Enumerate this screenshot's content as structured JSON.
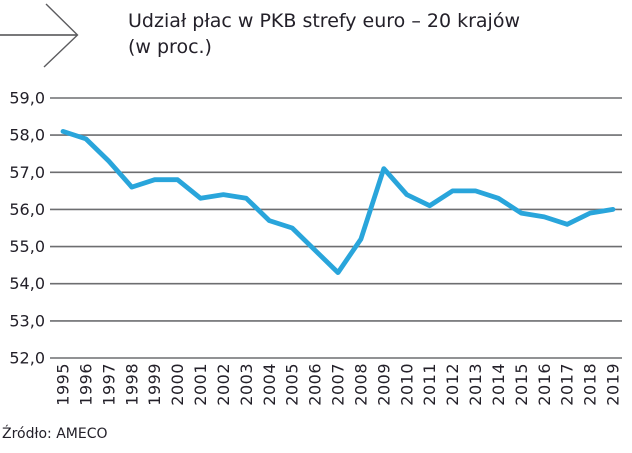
{
  "header": {
    "title_line1": "Udział płac w PKB strefy euro – 20 krajów",
    "title_line2": "(w proc.)"
  },
  "source_label": "Źródło: AMECO",
  "icons": {
    "header_arrow": "right-arrow-icon"
  },
  "colors": {
    "line": "#29A5DB",
    "grid": "#6D6E70",
    "text": "#232029",
    "background": "#FFFFFF"
  },
  "chart_data": {
    "type": "line",
    "title": "Udział płac w PKB strefy euro – 20 krajów (w proc.)",
    "source": "Źródło: AMECO",
    "categories": [
      "1995",
      "1996",
      "1997",
      "1998",
      "1999",
      "2000",
      "2001",
      "2002",
      "2003",
      "2004",
      "2005",
      "2006",
      "2007",
      "2008",
      "2009",
      "2010",
      "2011",
      "2012",
      "2013",
      "2014",
      "2015",
      "2016",
      "2017",
      "2018",
      "2019"
    ],
    "values": [
      58.1,
      57.9,
      57.3,
      56.6,
      56.8,
      56.8,
      56.3,
      56.4,
      56.3,
      55.7,
      55.5,
      54.9,
      54.3,
      55.2,
      57.1,
      56.4,
      56.1,
      56.5,
      56.5,
      56.3,
      55.9,
      55.8,
      55.6,
      55.9,
      56.0
    ],
    "xlabel": "",
    "ylabel": "",
    "ylim": [
      52.0,
      59.0
    ],
    "ytick_values": [
      59,
      58,
      57,
      56,
      55,
      54,
      53,
      52
    ],
    "ytick_labels": [
      "59,0",
      "58,0",
      "57,0",
      "56,0",
      "55,0",
      "54,0",
      "53,0",
      "52,0"
    ],
    "grid": "horizontal",
    "legend": "none",
    "line_color": "#29A5DB"
  }
}
